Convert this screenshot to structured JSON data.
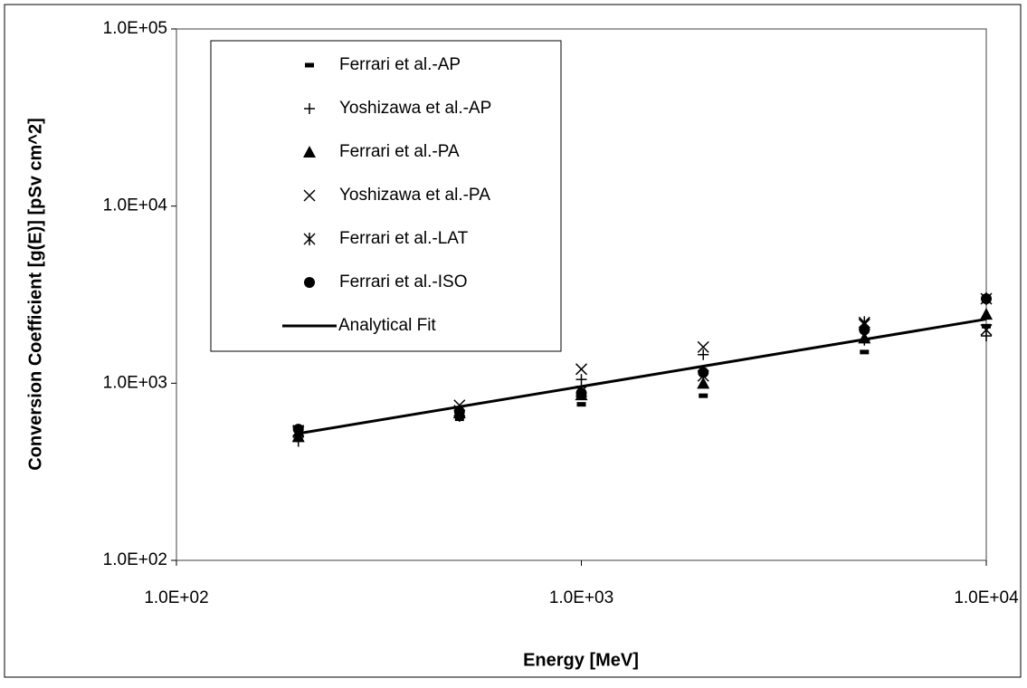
{
  "chart_data": {
    "type": "scatter",
    "xlabel": "Energy [MeV]",
    "ylabel": "Conversion Coefficient [g(E)] [pSv cm^2]",
    "log_x": true,
    "log_y": true,
    "xlim": [
      100,
      10000
    ],
    "xticks": [
      {
        "value": 100,
        "label": "1.0E+02"
      },
      {
        "value": 1000,
        "label": "1.0E+03"
      },
      {
        "value": 10000,
        "label": "1.0E+04"
      }
    ],
    "ylim": [
      100,
      100000
    ],
    "yticks": [
      {
        "value": 100,
        "label": "1.0E+02"
      },
      {
        "value": 1000,
        "label": "1.0E+03"
      },
      {
        "value": 10000,
        "label": "1.0E+04"
      },
      {
        "value": 100000,
        "label": "1.0E+05"
      }
    ],
    "x": [
      200,
      500,
      1000,
      2000,
      5000,
      10000
    ],
    "legend": "upper left",
    "series": [
      {
        "name": "Ferrari et al.-AP",
        "marker": "dash",
        "color": "#000000",
        "values": [
          480,
          630,
          760,
          850,
          1500,
          2100
        ]
      },
      {
        "name": "Yoshizawa et al.-AP",
        "marker": "plus",
        "color": "#000000",
        "values": [
          470,
          650,
          1050,
          1450,
          1750,
          1850
        ]
      },
      {
        "name": "Ferrari et al.-PA",
        "marker": "triangle",
        "color": "#000000",
        "values": [
          500,
          680,
          860,
          1000,
          1800,
          2450
        ]
      },
      {
        "name": "Yoshizawa et al.-PA",
        "marker": "x",
        "color": "#000000",
        "values": [
          530,
          750,
          1200,
          1600,
          2150,
          2000
        ]
      },
      {
        "name": "Ferrari et al.-LAT",
        "marker": "asterisk",
        "color": "#000000",
        "values": [
          540,
          700,
          900,
          1100,
          2200,
          3000
        ]
      },
      {
        "name": "Ferrari et al.-ISO",
        "marker": "circle",
        "color": "#000000",
        "values": [
          550,
          690,
          880,
          1150,
          2000,
          3000
        ]
      },
      {
        "name": "Analytical Fit",
        "marker": "line",
        "color": "#000000",
        "x": [
          200,
          10000
        ],
        "values": [
          520,
          2300
        ]
      }
    ]
  }
}
